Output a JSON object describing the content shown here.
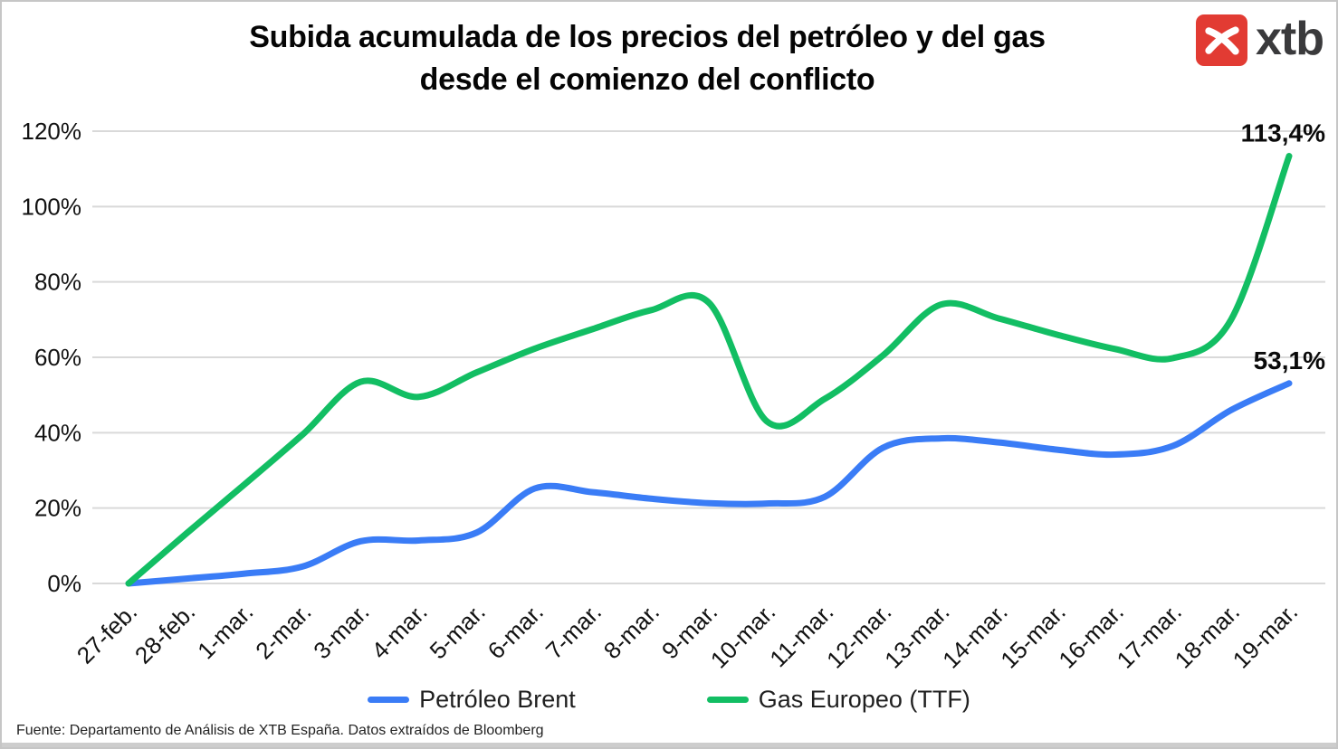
{
  "title": {
    "line1": "Subida acumulada de los precios del petróleo y del gas",
    "line2": "desde el comienzo del conflicto"
  },
  "logo": {
    "text": "xtb",
    "box_color": "#e23b33",
    "text_color": "#3a3a3c"
  },
  "footer": {
    "source": "Fuente: Departamento de Análisis de XTB España. Datos extraídos de Bloomberg"
  },
  "chart_data": {
    "type": "line",
    "title": "Subida acumulada de los precios del petróleo y del gas desde el comienzo del conflicto",
    "xlabel": "",
    "ylabel": "",
    "ylim": [
      0,
      120
    ],
    "grid": true,
    "legend_position": "bottom",
    "grid_color": "#d9d9d9",
    "y_tick_labels": [
      "0%",
      "20%",
      "40%",
      "60%",
      "80%",
      "100%",
      "120%"
    ],
    "categories": [
      "27-feb.",
      "28-feb.",
      "1-mar.",
      "2-mar.",
      "3-mar.",
      "4-mar.",
      "5-mar.",
      "6-mar.",
      "7-mar.",
      "8-mar.",
      "9-mar.",
      "10-mar.",
      "11-mar.",
      "12-mar.",
      "13-mar.",
      "14-mar.",
      "15-mar.",
      "16-mar.",
      "17-mar.",
      "18-mar.",
      "19-mar."
    ],
    "series": [
      {
        "name": "Petróleo Brent",
        "color": "#3a7cf6",
        "end_label": "53,1%",
        "values": [
          0,
          1.3,
          2.6,
          4.5,
          11.2,
          11.4,
          13.5,
          25.2,
          24.2,
          22.5,
          21.3,
          21.2,
          23.0,
          36.0,
          38.5,
          37.4,
          35.5,
          34.2,
          36.5,
          46.0,
          53.1
        ]
      },
      {
        "name": "Gas Europeo (TTF)",
        "color": "#12be63",
        "end_label": "113,4%",
        "values": [
          0,
          13.3,
          26.3,
          39.5,
          53.5,
          49.5,
          56.0,
          62.3,
          67.5,
          72.5,
          74.5,
          43.0,
          49.0,
          60.5,
          74.0,
          70.3,
          66.0,
          62.2,
          59.8,
          70.0,
          113.4
        ]
      }
    ]
  }
}
